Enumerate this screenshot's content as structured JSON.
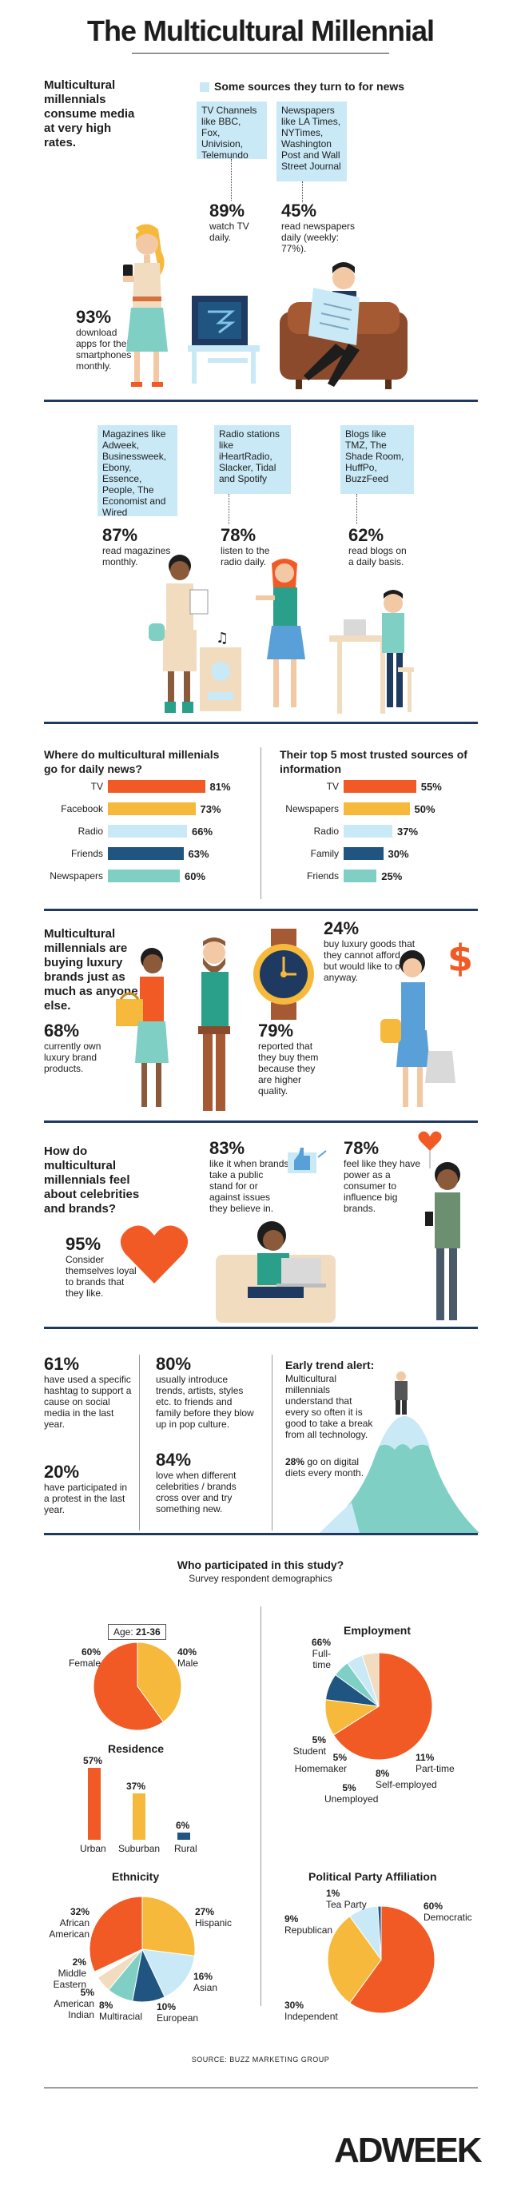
{
  "title": "The Multicultural Millennial",
  "s1": {
    "intro": "Multicultural millennials consume media at very high rates.",
    "sources_header": "Some sources they turn to for news",
    "tv_box": "TV Channels like BBC, Fox, Univision, Telemundo",
    "tv_pct": "89%",
    "tv_text": "watch TV daily.",
    "np_box": "Newspapers like LA Times, NYTimes, Washington Post and Wall Street Journal",
    "np_pct": "45%",
    "np_text": "read newspapers daily (weekly: 77%).",
    "apps_pct": "93%",
    "apps_text": "download apps for their smartphones monthly."
  },
  "s2": {
    "mag_box": "Magazines like Adweek, Businessweek, Ebony, Essence, People, The Economist and Wired",
    "mag_pct": "87%",
    "mag_text": "read magazines monthly.",
    "radio_box": "Radio stations like iHeartRadio, Slacker, Tidal and Spotify",
    "radio_pct": "78%",
    "radio_text": "listen to the radio daily.",
    "blog_box": "Blogs like TMZ, The Shade Room, HuffPo, BuzzFeed",
    "blog_pct": "62%",
    "blog_text": "read blogs on a daily basis."
  },
  "s3": {
    "left_title": "Where do multicultural millenials go for daily news?",
    "left_bars": [
      {
        "label": "TV",
        "value": "81%",
        "num": 81
      },
      {
        "label": "Facebook",
        "value": "73%",
        "num": 73
      },
      {
        "label": "Radio",
        "value": "66%",
        "num": 66
      },
      {
        "label": "Friends",
        "value": "63%",
        "num": 63
      },
      {
        "label": "Newspapers",
        "value": "60%",
        "num": 60
      }
    ],
    "right_title": "Their top 5 most trusted sources of information",
    "right_bars": [
      {
        "label": "TV",
        "value": "55%",
        "num": 55
      },
      {
        "label": "Newspapers",
        "value": "50%",
        "num": 50
      },
      {
        "label": "Radio",
        "value": "37%",
        "num": 37
      },
      {
        "label": "Family",
        "value": "30%",
        "num": 30
      },
      {
        "label": "Friends",
        "value": "25%",
        "num": 25
      }
    ],
    "bar_colors": [
      "#f15a24",
      "#f6b93b",
      "#c9e9f6",
      "#1f5580",
      "#7fcfc4"
    ]
  },
  "s4": {
    "intro": "Multicultural millennials are buying luxury brands just as much as anyone else.",
    "own_pct": "68%",
    "own_text": "currently own luxury brand products.",
    "quality_pct": "79%",
    "quality_text": "reported that they buy them because they are higher quality.",
    "afford_pct": "24%",
    "afford_text": "buy luxury goods that they cannot afford but would like to own anyway.",
    "dollar": "$"
  },
  "s5": {
    "intro": "How do multicultural millennials feel about celebrities and brands?",
    "loyal_pct": "95%",
    "loyal_text": "Consider themselves loyal to brands that they like.",
    "stand_pct": "83%",
    "stand_text": "like it when brands take a public stand for or against issues they believe in.",
    "power_pct": "78%",
    "power_text": "feel like they have power as a consumer to influence big brands."
  },
  "s6": {
    "hashtag_pct": "61%",
    "hashtag_text": "have used a specific hashtag to support a cause on social media in the last year.",
    "protest_pct": "20%",
    "protest_text": "have participated in a protest in the last year.",
    "trends_pct": "80%",
    "trends_text": "usually introduce trends, artists, styles etc. to friends and family before they blow up in pop culture.",
    "cross_pct": "84%",
    "cross_text": "love when different celebrities / brands cross over and try something new.",
    "alert_title": "Early trend alert:",
    "alert_text": "Multicultural millennials understand that every so often it is good to take a break from all technology.",
    "diet_pct": "28%",
    "diet_text": "go on digital diets every month."
  },
  "demo": {
    "title": "Who participated in this study?",
    "subtitle": "Survey respondent demographics",
    "age_label": "Age:",
    "age_value": "21-36",
    "female_pct": "60%",
    "female_label": "Female",
    "male_pct": "40%",
    "male_label": "Male",
    "residence_title": "Residence",
    "residence": [
      {
        "label": "Urban",
        "value": "57%",
        "num": 57
      },
      {
        "label": "Suburban",
        "value": "37%",
        "num": 37
      },
      {
        "label": "Rural",
        "value": "6%",
        "num": 6
      }
    ],
    "employment_title": "Employment",
    "employment": [
      {
        "label": "Full-time",
        "value": "66%",
        "num": 66
      },
      {
        "label": "Part-time",
        "value": "11%",
        "num": 11
      },
      {
        "label": "Self-employed",
        "value": "8%",
        "num": 8
      },
      {
        "label": "Unemployed",
        "value": "5%",
        "num": 5
      },
      {
        "label": "Homemaker",
        "value": "5%",
        "num": 5
      },
      {
        "label": "Student",
        "value": "5%",
        "num": 5
      }
    ],
    "ethnicity_title": "Ethnicity",
    "ethnicity": [
      {
        "label": "Hispanic",
        "value": "27%",
        "num": 27
      },
      {
        "label": "Asian",
        "value": "16%",
        "num": 16
      },
      {
        "label": "European",
        "value": "10%",
        "num": 10
      },
      {
        "label": "Multiracial",
        "value": "8%",
        "num": 8
      },
      {
        "label": "American Indian",
        "value": "5%",
        "num": 5
      },
      {
        "label": "Middle Eastern",
        "value": "2%",
        "num": 2
      },
      {
        "label": "African American",
        "value": "32%",
        "num": 32
      }
    ],
    "party_title": "Political Party Affiliation",
    "party": [
      {
        "label": "Democratic",
        "value": "60%",
        "num": 60
      },
      {
        "label": "Independent",
        "value": "30%",
        "num": 30
      },
      {
        "label": "Republican",
        "value": "9%",
        "num": 9
      },
      {
        "label": "Tea Party",
        "value": "1%",
        "num": 1
      }
    ]
  },
  "source": "SOURCE: BUZZ MARKETING GROUP",
  "logo": "ADWEEK",
  "colors": {
    "orange": "#f15a24",
    "yellow": "#f6b93b",
    "lightblue": "#c9e9f6",
    "navy": "#1f3a60",
    "blue": "#1f5580",
    "teal": "#7fcfc4",
    "tan": "#f2dcc0"
  }
}
